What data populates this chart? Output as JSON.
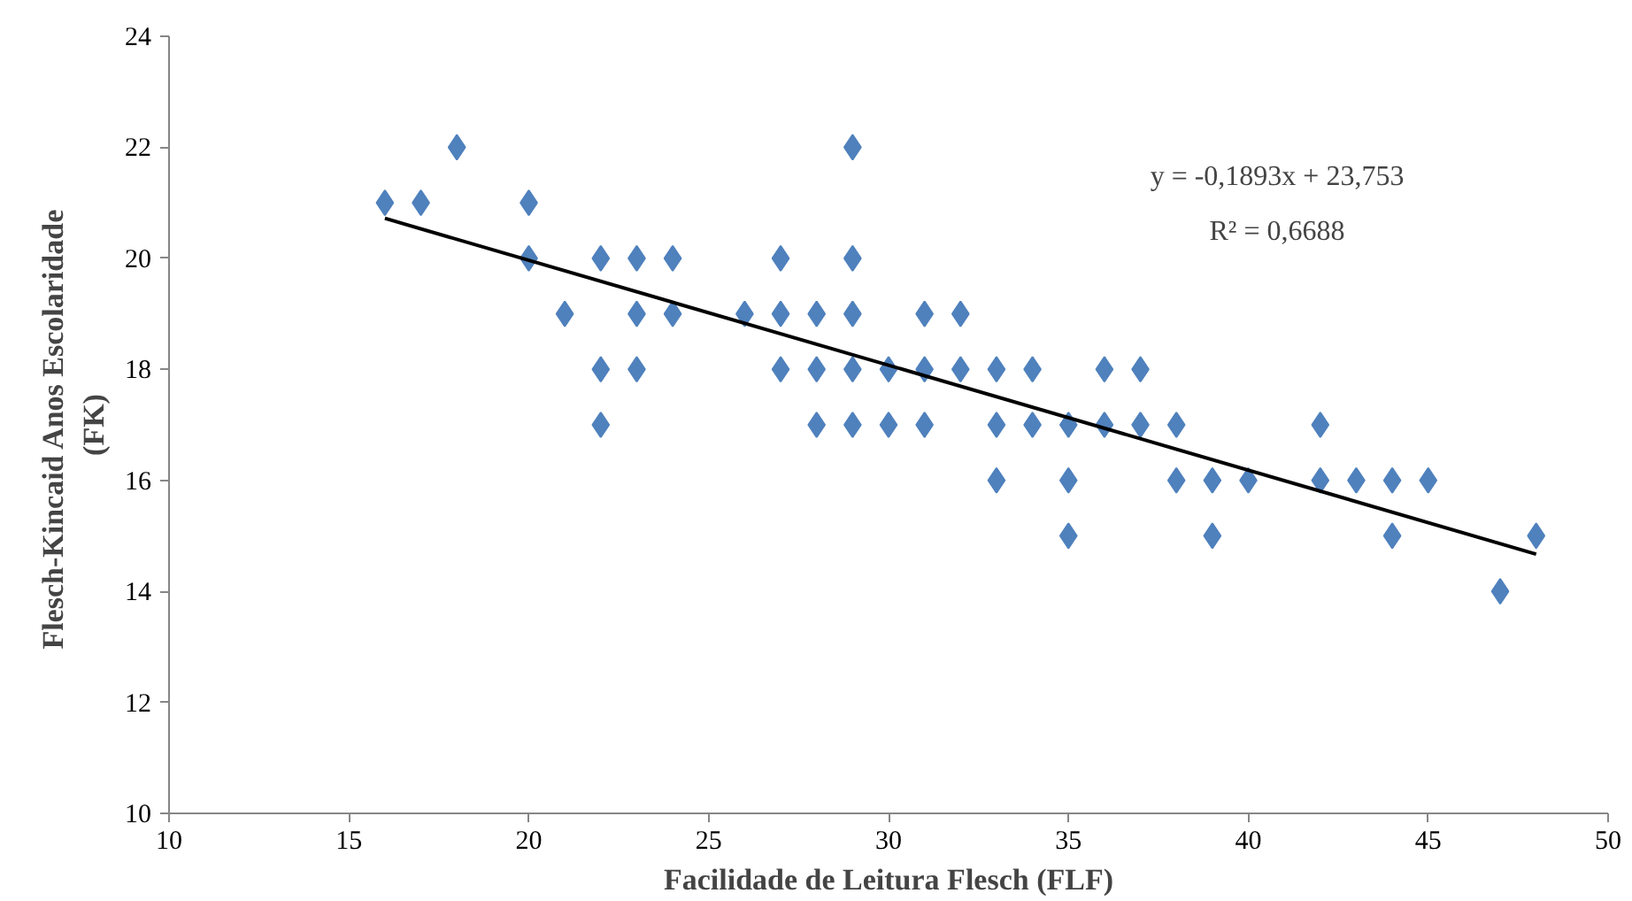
{
  "chart_data": {
    "type": "scatter",
    "xlabel": "Facilidade de Leitura Flesch (FLF)",
    "ylabel": "Flesch-Kincaid Anos  Escolaridade\n(FK)",
    "xlim": [
      10,
      50
    ],
    "ylim": [
      10,
      24
    ],
    "xticks": [
      10,
      15,
      20,
      25,
      30,
      35,
      40,
      45,
      50
    ],
    "yticks": [
      10,
      12,
      14,
      16,
      18,
      20,
      22,
      24
    ],
    "grid": false,
    "annotations": [
      "y = -0,1893x + 23,753",
      "R² = 0,6688"
    ],
    "series": [
      {
        "marker": "diamond",
        "color": "#4f81bd",
        "x": [
          16,
          17,
          18,
          20,
          20,
          21,
          22,
          22,
          22,
          23,
          23,
          23,
          24,
          24,
          26,
          27,
          27,
          27,
          28,
          28,
          28,
          29,
          29,
          29,
          29,
          29,
          30,
          30,
          31,
          31,
          31,
          32,
          32,
          33,
          33,
          33,
          34,
          34,
          35,
          35,
          35,
          36,
          36,
          37,
          37,
          38,
          38,
          39,
          39,
          40,
          42,
          42,
          43,
          44,
          44,
          45,
          47,
          48
        ],
        "values": [
          21,
          21,
          22,
          21,
          20,
          19,
          20,
          18,
          17,
          20,
          19,
          18,
          20,
          19,
          19,
          20,
          19,
          18,
          19,
          18,
          17,
          22,
          20,
          19,
          18,
          17,
          18,
          17,
          19,
          18,
          17,
          19,
          18,
          18,
          17,
          16,
          18,
          17,
          17,
          16,
          15,
          18,
          17,
          18,
          17,
          17,
          16,
          16,
          15,
          16,
          17,
          16,
          16,
          16,
          15,
          16,
          14,
          15
        ]
      },
      {
        "type": "line",
        "marker": "none",
        "color": "#000000",
        "line_style": "solid",
        "x": [
          16,
          48
        ],
        "values": [
          20.72,
          14.67
        ]
      }
    ]
  }
}
